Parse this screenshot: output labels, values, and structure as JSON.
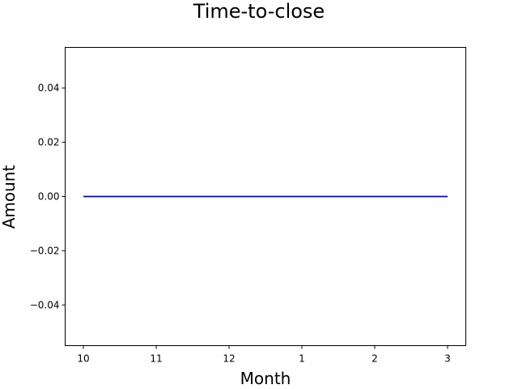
{
  "chart_data": {
    "type": "line",
    "title": "Time-to-close",
    "xlabel": "Month",
    "ylabel": "Amount",
    "x": [
      "10",
      "11",
      "12",
      "1",
      "2",
      "3"
    ],
    "series": [
      {
        "color": "#0000cc",
        "values": [
          0,
          0,
          0,
          0,
          0,
          0
        ]
      }
    ],
    "ylim": [
      -0.055,
      0.055
    ],
    "yticks": [
      -0.04,
      -0.02,
      0.0,
      0.02,
      0.04
    ],
    "ytick_labels": [
      "−0.04",
      "−0.02",
      "0.00",
      "0.02",
      "0.04"
    ],
    "grid": false,
    "legend": "none"
  }
}
